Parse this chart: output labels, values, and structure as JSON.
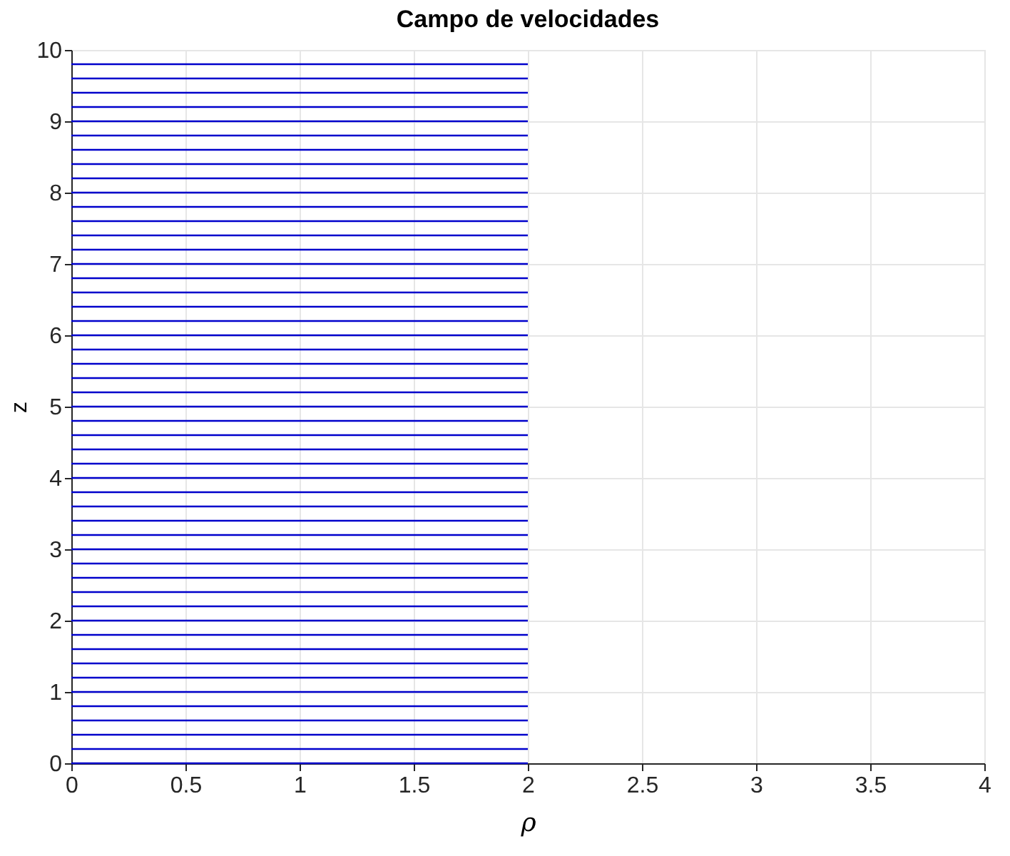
{
  "chart_data": {
    "type": "line",
    "title": "Campo de velocidades",
    "xlabel": "ρ",
    "ylabel": "z",
    "x": [
      0,
      2
    ],
    "series": [
      {
        "color": "#0000cc",
        "values": [
          0,
          0
        ]
      },
      {
        "color": "#0000cc",
        "values": [
          0.2,
          0.2
        ]
      },
      {
        "color": "#0000cc",
        "values": [
          0.4,
          0.4
        ]
      },
      {
        "color": "#0000cc",
        "values": [
          0.6,
          0.6
        ]
      },
      {
        "color": "#0000cc",
        "values": [
          0.8,
          0.8
        ]
      },
      {
        "color": "#0000cc",
        "values": [
          1,
          1
        ]
      },
      {
        "color": "#0000cc",
        "values": [
          1.2,
          1.2
        ]
      },
      {
        "color": "#0000cc",
        "values": [
          1.4,
          1.4
        ]
      },
      {
        "color": "#0000cc",
        "values": [
          1.6,
          1.6
        ]
      },
      {
        "color": "#0000cc",
        "values": [
          1.8,
          1.8
        ]
      },
      {
        "color": "#0000cc",
        "values": [
          2,
          2
        ]
      },
      {
        "color": "#0000cc",
        "values": [
          2.2,
          2.2
        ]
      },
      {
        "color": "#0000cc",
        "values": [
          2.4,
          2.4
        ]
      },
      {
        "color": "#0000cc",
        "values": [
          2.6,
          2.6
        ]
      },
      {
        "color": "#0000cc",
        "values": [
          2.8,
          2.8
        ]
      },
      {
        "color": "#0000cc",
        "values": [
          3,
          3
        ]
      },
      {
        "color": "#0000cc",
        "values": [
          3.2,
          3.2
        ]
      },
      {
        "color": "#0000cc",
        "values": [
          3.4,
          3.4
        ]
      },
      {
        "color": "#0000cc",
        "values": [
          3.6,
          3.6
        ]
      },
      {
        "color": "#0000cc",
        "values": [
          3.8,
          3.8
        ]
      },
      {
        "color": "#0000cc",
        "values": [
          4,
          4
        ]
      },
      {
        "color": "#0000cc",
        "values": [
          4.2,
          4.2
        ]
      },
      {
        "color": "#0000cc",
        "values": [
          4.4,
          4.4
        ]
      },
      {
        "color": "#0000cc",
        "values": [
          4.6,
          4.6
        ]
      },
      {
        "color": "#0000cc",
        "values": [
          4.8,
          4.8
        ]
      },
      {
        "color": "#0000cc",
        "values": [
          5,
          5
        ]
      },
      {
        "color": "#0000cc",
        "values": [
          5.2,
          5.2
        ]
      },
      {
        "color": "#0000cc",
        "values": [
          5.4,
          5.4
        ]
      },
      {
        "color": "#0000cc",
        "values": [
          5.6,
          5.6
        ]
      },
      {
        "color": "#0000cc",
        "values": [
          5.8,
          5.8
        ]
      },
      {
        "color": "#0000cc",
        "values": [
          6,
          6
        ]
      },
      {
        "color": "#0000cc",
        "values": [
          6.2,
          6.2
        ]
      },
      {
        "color": "#0000cc",
        "values": [
          6.4,
          6.4
        ]
      },
      {
        "color": "#0000cc",
        "values": [
          6.6,
          6.6
        ]
      },
      {
        "color": "#0000cc",
        "values": [
          6.8,
          6.8
        ]
      },
      {
        "color": "#0000cc",
        "values": [
          7,
          7
        ]
      },
      {
        "color": "#0000cc",
        "values": [
          7.2,
          7.2
        ]
      },
      {
        "color": "#0000cc",
        "values": [
          7.4,
          7.4
        ]
      },
      {
        "color": "#0000cc",
        "values": [
          7.6,
          7.6
        ]
      },
      {
        "color": "#0000cc",
        "values": [
          7.8,
          7.8
        ]
      },
      {
        "color": "#0000cc",
        "values": [
          8,
          8
        ]
      },
      {
        "color": "#0000cc",
        "values": [
          8.2,
          8.2
        ]
      },
      {
        "color": "#0000cc",
        "values": [
          8.4,
          8.4
        ]
      },
      {
        "color": "#0000cc",
        "values": [
          8.6,
          8.6
        ]
      },
      {
        "color": "#0000cc",
        "values": [
          8.8,
          8.8
        ]
      },
      {
        "color": "#0000cc",
        "values": [
          9,
          9
        ]
      },
      {
        "color": "#0000cc",
        "values": [
          9.2,
          9.2
        ]
      },
      {
        "color": "#0000cc",
        "values": [
          9.4,
          9.4
        ]
      },
      {
        "color": "#0000cc",
        "values": [
          9.6,
          9.6
        ]
      },
      {
        "color": "#0000cc",
        "values": [
          9.8,
          9.8
        ]
      }
    ],
    "xlim": [
      0,
      4
    ],
    "xticks": [
      0,
      0.5,
      1,
      1.5,
      2,
      2.5,
      3,
      3.5,
      4
    ],
    "ylim": [
      0,
      10
    ],
    "yticks": [
      0,
      1,
      2,
      3,
      4,
      5,
      6,
      7,
      8,
      9,
      10
    ],
    "grid": true
  }
}
